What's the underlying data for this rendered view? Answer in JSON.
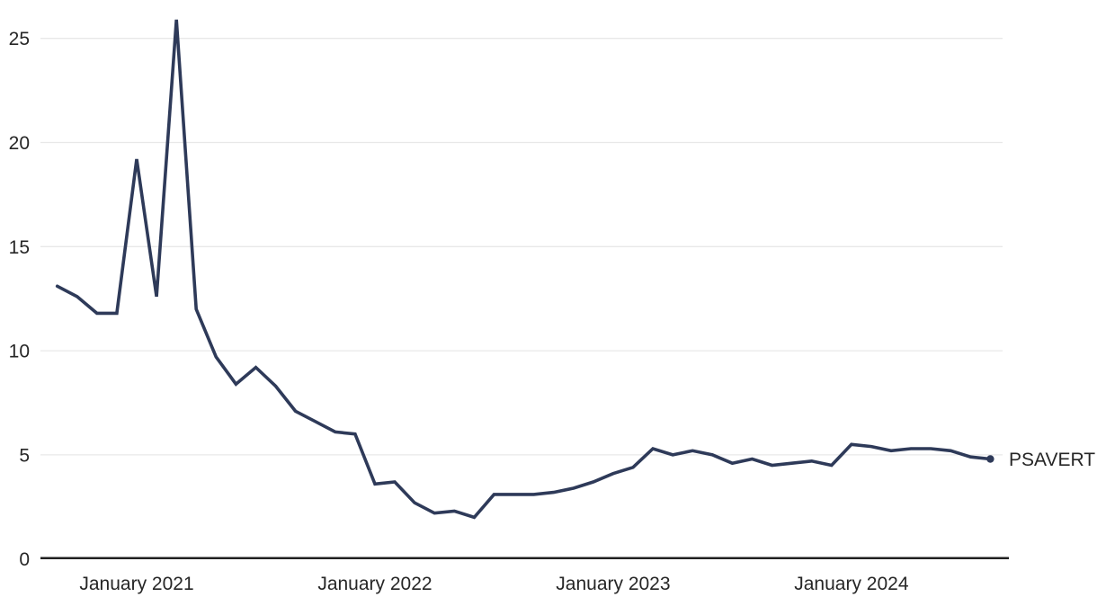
{
  "chart_data": {
    "type": "line",
    "title": "",
    "xlabel": "",
    "ylabel": "",
    "grid": "horizontal-only",
    "legend_position": "right-end-of-line",
    "ylim": [
      0,
      26.5
    ],
    "y_ticks": [
      0,
      5,
      10,
      15,
      20,
      25
    ],
    "x_ticks": [
      {
        "x": "2021-01",
        "label": "January 2021"
      },
      {
        "x": "2022-01",
        "label": "January 2022"
      },
      {
        "x": "2023-01",
        "label": "January 2023"
      },
      {
        "x": "2024-01",
        "label": "January 2024"
      }
    ],
    "series": [
      {
        "name": "PSAVERT",
        "label": "PSAVERT",
        "end_marker": "dot",
        "x": [
          "2020-09",
          "2020-10",
          "2020-11",
          "2020-12",
          "2021-01",
          "2021-02",
          "2021-03",
          "2021-04",
          "2021-05",
          "2021-06",
          "2021-07",
          "2021-08",
          "2021-09",
          "2021-10",
          "2021-11",
          "2021-12",
          "2022-01",
          "2022-02",
          "2022-03",
          "2022-04",
          "2022-05",
          "2022-06",
          "2022-07",
          "2022-08",
          "2022-09",
          "2022-10",
          "2022-11",
          "2022-12",
          "2023-01",
          "2023-02",
          "2023-03",
          "2023-04",
          "2023-05",
          "2023-06",
          "2023-07",
          "2023-08",
          "2023-09",
          "2023-10",
          "2023-11",
          "2023-12",
          "2024-01",
          "2024-02",
          "2024-03",
          "2024-04",
          "2024-05",
          "2024-06",
          "2024-07",
          "2024-08"
        ],
        "values": [
          13.1,
          12.6,
          11.8,
          11.8,
          19.2,
          12.6,
          25.9,
          12.0,
          9.7,
          8.4,
          9.2,
          8.3,
          7.1,
          6.6,
          6.1,
          6.0,
          3.6,
          3.7,
          2.7,
          2.2,
          2.3,
          2.0,
          3.1,
          3.1,
          3.1,
          3.2,
          3.4,
          3.7,
          4.1,
          4.4,
          5.3,
          5.0,
          5.2,
          5.0,
          4.6,
          4.8,
          4.5,
          4.6,
          4.7,
          4.5,
          5.5,
          5.4,
          5.2,
          5.3,
          5.3,
          5.2,
          4.9,
          4.8
        ]
      }
    ],
    "colors": {
      "line": "#2e3a59",
      "grid": "#e8e8e8",
      "axis": "#212121",
      "text": "#262626",
      "background": "#ffffff"
    }
  }
}
